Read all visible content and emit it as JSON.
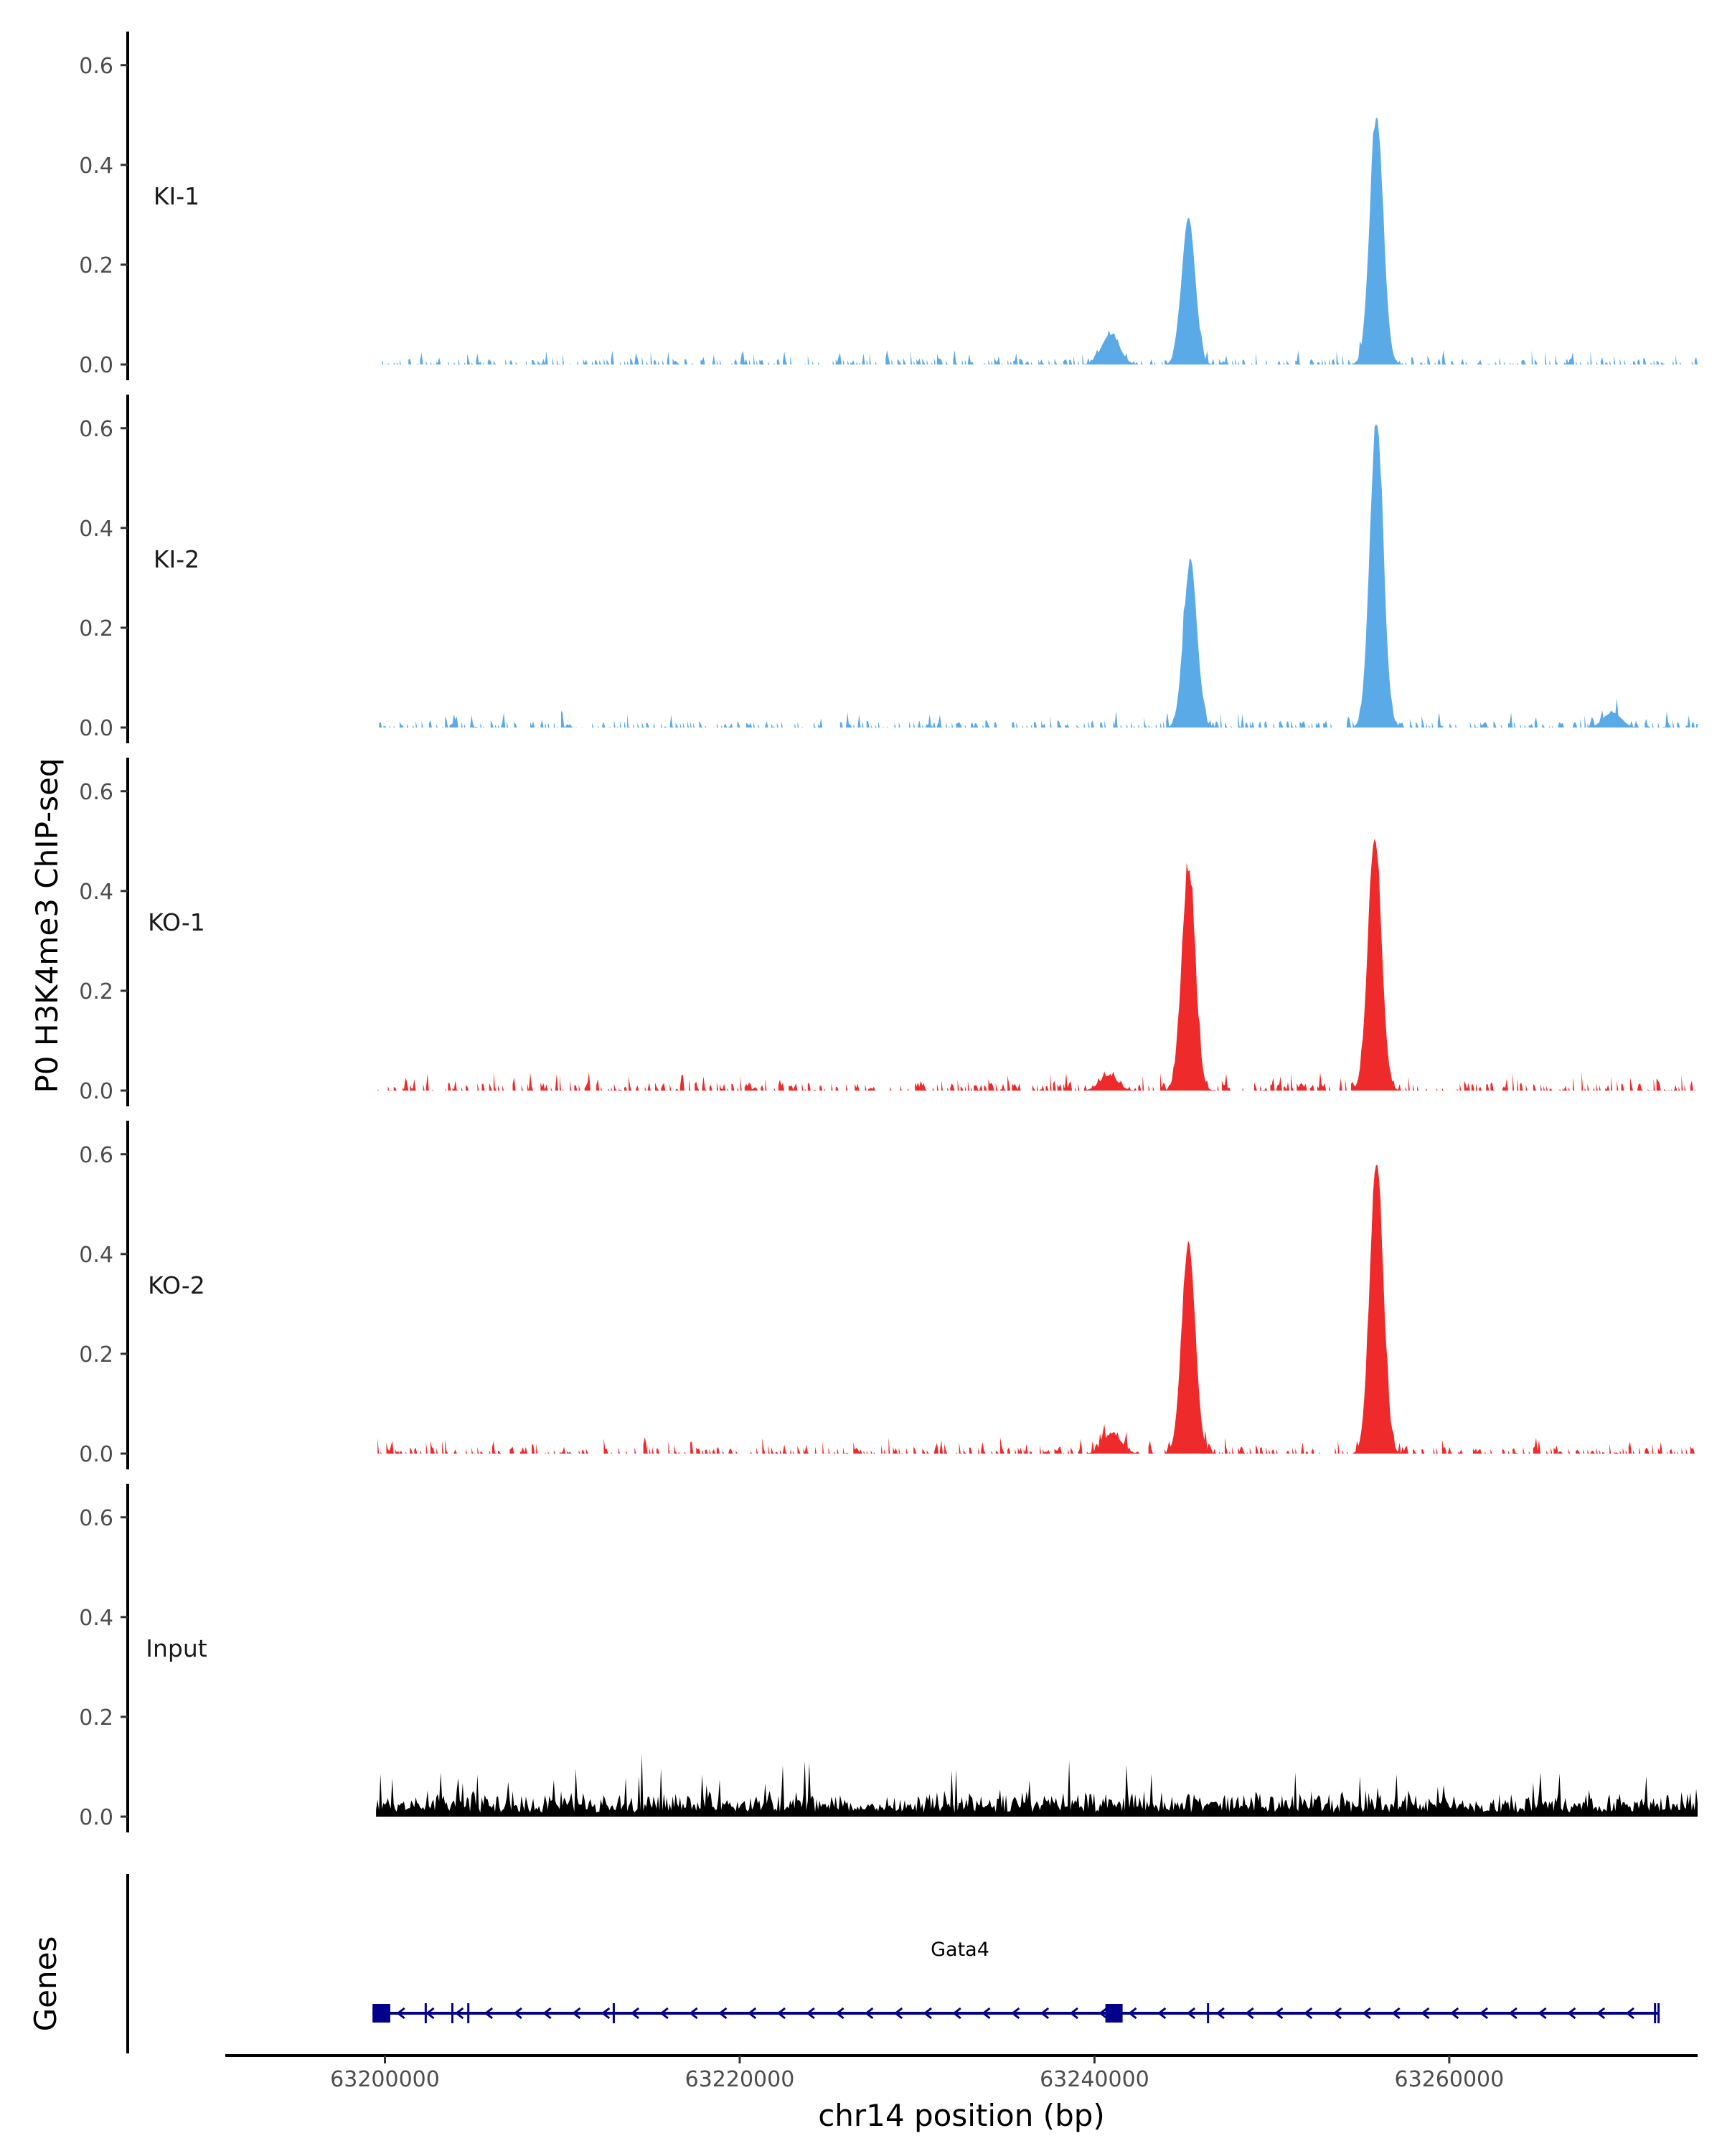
{
  "chart_data": {
    "type": "area",
    "ylabel": "P0 H3K4me3 ChIP-seq",
    "xlabel": "chr14 position (bp)",
    "xlim": [
      63191000,
      63274000
    ],
    "x_range_data": [
      63199500,
      63274000
    ],
    "ylim": [
      0,
      0.65
    ],
    "yticks": [
      0.0,
      0.2,
      0.4,
      0.6
    ],
    "ytick_labels": [
      "0.0",
      "0.2",
      "0.4",
      "0.6"
    ],
    "xticks": [
      63200000,
      63220000,
      63240000,
      63260000
    ],
    "xtick_labels": [
      "63200000",
      "63220000",
      "63240000",
      "63260000"
    ],
    "grid": false,
    "colors": {
      "KI": "#5aaae8",
      "KO": "#ee2a2a",
      "Input": "#000000",
      "gene": "#00008b"
    },
    "series": [
      {
        "name": "KI-1",
        "color": "#5aaae8",
        "noise": 0.012,
        "seed": 11,
        "peaks": [
          {
            "pos": 63245300,
            "height": 0.295
          },
          {
            "pos": 63255900,
            "height": 0.495
          },
          {
            "pos": 63240900,
            "height": 0.06
          }
        ]
      },
      {
        "name": "KI-2",
        "color": "#5aaae8",
        "noise": 0.014,
        "seed": 23,
        "peaks": [
          {
            "pos": 63245400,
            "height": 0.33
          },
          {
            "pos": 63255900,
            "height": 0.61
          },
          {
            "pos": 63269200,
            "height": 0.03
          }
        ]
      },
      {
        "name": "KO-1",
        "color": "#ee2a2a",
        "noise": 0.016,
        "seed": 37,
        "peaks": [
          {
            "pos": 63245300,
            "height": 0.44
          },
          {
            "pos": 63255800,
            "height": 0.505
          },
          {
            "pos": 63240800,
            "height": 0.03
          }
        ]
      },
      {
        "name": "KO-2",
        "color": "#ee2a2a",
        "noise": 0.014,
        "seed": 41,
        "peaks": [
          {
            "pos": 63245300,
            "height": 0.42
          },
          {
            "pos": 63255900,
            "height": 0.58
          },
          {
            "pos": 63241000,
            "height": 0.04
          }
        ]
      },
      {
        "name": "Input",
        "color": "#000000",
        "noise": 0.05,
        "seed": 53,
        "peaks": []
      }
    ],
    "genes": {
      "title": "Genes",
      "name": "Gata4",
      "start": 63199300,
      "end": 63271800,
      "strand": "-",
      "exons": [
        63200000,
        63202300,
        63203800,
        63204700,
        63212900,
        63241100,
        63246400,
        63271600
      ]
    }
  }
}
